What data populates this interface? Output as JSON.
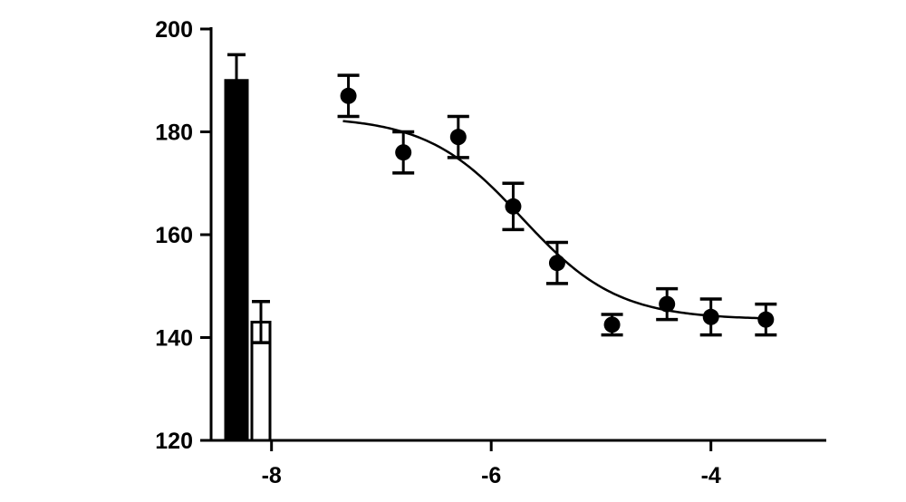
{
  "chart_data": {
    "type": "scatter",
    "title": "",
    "xlabel": "",
    "ylabel": "",
    "xlim": [
      -8.55,
      -2.95
    ],
    "ylim": [
      120,
      200
    ],
    "x_ticks": [
      -8,
      -6,
      -4
    ],
    "y_ticks": [
      120,
      140,
      160,
      180,
      200
    ],
    "x_tick_labels": [
      "-8",
      "-6",
      "-4"
    ],
    "y_tick_labels": [
      "120",
      "140",
      "160",
      "180",
      "200"
    ],
    "grid": false,
    "legend": "none",
    "bars": [
      {
        "label": "",
        "fill": "solid",
        "value": 190,
        "error": 5
      },
      {
        "label": "",
        "fill": "open",
        "value": 143,
        "error": 4
      }
    ],
    "series": [
      {
        "marker": "circle",
        "color": "#000000",
        "x": [
          -7.3,
          -6.8,
          -6.3,
          -5.8,
          -5.4,
          -4.9,
          -4.4,
          -4.0,
          -3.5
        ],
        "y": [
          187,
          176,
          179,
          165.5,
          154.5,
          142.5,
          146.5,
          144,
          143.5
        ],
        "error": [
          4,
          4,
          4,
          4.5,
          4,
          2,
          3,
          3.5,
          3
        ]
      }
    ],
    "fit_curve": {
      "type": "sigmoid",
      "top": 183,
      "bottom": 143.5,
      "log_ec50": -5.72,
      "hill_slope": -1,
      "x_range": [
        -7.35,
        -3.45
      ]
    }
  }
}
